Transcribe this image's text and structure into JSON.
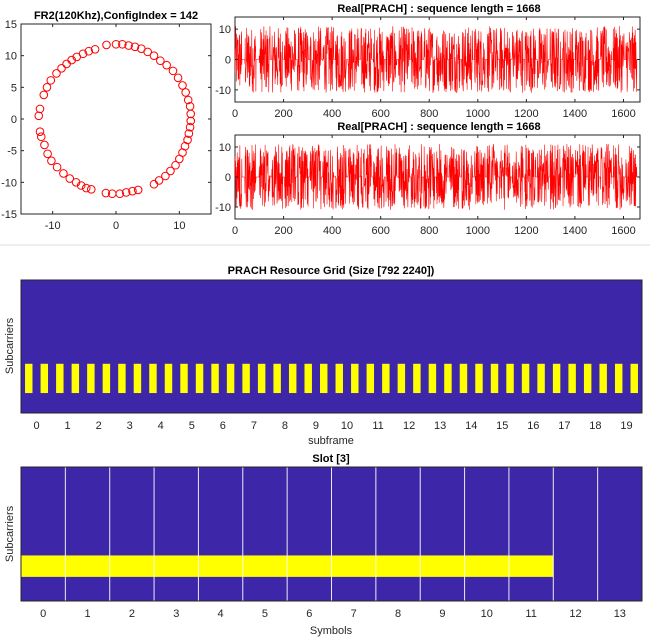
{
  "chart_data": [
    {
      "type": "scatter",
      "title": "FR2(120Khz),ConfigIndex = 142",
      "xlim": [
        -15,
        15
      ],
      "ylim": [
        -15,
        15
      ],
      "xticks": [
        "-10",
        "0",
        "10"
      ],
      "yticks": [
        "15",
        "10",
        "5",
        "0",
        "-5",
        "-10",
        "-15"
      ],
      "marker": "circle",
      "color": "#ff0000",
      "points": [
        [
          -1.5,
          11.7
        ],
        [
          0.0,
          11.8
        ],
        [
          1.0,
          11.8
        ],
        [
          2.0,
          11.6
        ],
        [
          3.0,
          11.4
        ],
        [
          4.0,
          11.1
        ],
        [
          5.0,
          10.6
        ],
        [
          6.0,
          10.0
        ],
        [
          7.0,
          9.2
        ],
        [
          8.0,
          8.5
        ],
        [
          9.0,
          7.6
        ],
        [
          9.8,
          6.5
        ],
        [
          10.5,
          5.3
        ],
        [
          11.0,
          4.2
        ],
        [
          11.4,
          3.0
        ],
        [
          11.7,
          2.0
        ],
        [
          11.8,
          0.8
        ],
        [
          11.8,
          -0.3
        ],
        [
          11.7,
          -1.3
        ],
        [
          11.5,
          -2.3
        ],
        [
          11.3,
          -3.3
        ],
        [
          10.9,
          -4.3
        ],
        [
          10.5,
          -5.3
        ],
        [
          10.0,
          -6.3
        ],
        [
          9.4,
          -7.3
        ],
        [
          8.6,
          -8.2
        ],
        [
          7.8,
          -9.0
        ],
        [
          6.8,
          -9.7
        ],
        [
          6.0,
          -10.3
        ],
        [
          3.5,
          -11.2
        ],
        [
          2.6,
          -11.4
        ],
        [
          1.6,
          -11.6
        ],
        [
          0.6,
          -11.8
        ],
        [
          -0.6,
          -11.8
        ],
        [
          -1.6,
          -11.7
        ],
        [
          -3.9,
          -11.1
        ],
        [
          -4.7,
          -10.9
        ],
        [
          -5.5,
          -10.5
        ],
        [
          -6.3,
          -10.0
        ],
        [
          -7.3,
          -9.4
        ],
        [
          -8.3,
          -8.6
        ],
        [
          -9.3,
          -7.6
        ],
        [
          -10.2,
          -6.6
        ],
        [
          -10.8,
          -5.5
        ],
        [
          -11.3,
          -4.1
        ],
        [
          -11.8,
          -2.8
        ],
        [
          -12.0,
          -2.0
        ],
        [
          -12.2,
          0.5
        ],
        [
          -12.0,
          1.6
        ],
        [
          -11.4,
          3.8
        ],
        [
          -10.9,
          5.0
        ],
        [
          -10.3,
          6.1
        ],
        [
          -9.4,
          7.2
        ],
        [
          -8.6,
          8.0
        ],
        [
          -7.8,
          8.7
        ],
        [
          -7.0,
          9.3
        ],
        [
          -6.2,
          9.8
        ],
        [
          -5.2,
          10.3
        ],
        [
          -4.3,
          10.7
        ],
        [
          -3.3,
          11.0
        ]
      ]
    },
    {
      "type": "line",
      "title": "Real[PRACH] : sequence length = 1668",
      "xlim": [
        0,
        1668
      ],
      "ylim": [
        -14,
        14
      ],
      "xticks": [
        0,
        200,
        400,
        600,
        800,
        1000,
        1200,
        1400,
        1600
      ],
      "yticks": [
        10,
        0,
        -10
      ],
      "color": "#ff0000",
      "amplitude": 11,
      "bursts": [
        [
          0,
          28
        ],
        [
          41,
          86
        ],
        [
          100,
          144
        ],
        [
          152,
          196
        ],
        [
          204,
          249
        ],
        [
          257,
          301
        ],
        [
          309,
          354
        ],
        [
          362,
          406
        ],
        [
          414,
          458
        ],
        [
          466,
          510
        ],
        [
          518,
          562
        ],
        [
          570,
          614
        ],
        [
          622,
          666
        ],
        [
          674,
          718
        ],
        [
          726,
          770
        ],
        [
          778,
          822
        ],
        [
          830,
          874
        ],
        [
          882,
          926
        ],
        [
          934,
          978
        ],
        [
          986,
          1030
        ],
        [
          1038,
          1082
        ],
        [
          1090,
          1134
        ],
        [
          1142,
          1186
        ],
        [
          1194,
          1238
        ],
        [
          1246,
          1290
        ],
        [
          1298,
          1342
        ],
        [
          1350,
          1394
        ],
        [
          1402,
          1446
        ],
        [
          1454,
          1498
        ],
        [
          1506,
          1550
        ],
        [
          1558,
          1602
        ],
        [
          1610,
          1654
        ]
      ]
    },
    {
      "type": "line",
      "title": "Real[PRACH] : sequence length = 1668",
      "xlim": [
        0,
        1668
      ],
      "ylim": [
        -14,
        14
      ],
      "xticks": [
        0,
        200,
        400,
        600,
        800,
        1000,
        1200,
        1400,
        1600
      ],
      "yticks": [
        10,
        0,
        -10
      ],
      "color": "#ff0000",
      "amplitude": 11,
      "bursts": [
        [
          0,
          28
        ],
        [
          41,
          86
        ],
        [
          100,
          144
        ],
        [
          152,
          196
        ],
        [
          204,
          249
        ],
        [
          257,
          301
        ],
        [
          309,
          354
        ],
        [
          362,
          406
        ],
        [
          414,
          458
        ],
        [
          466,
          510
        ],
        [
          518,
          562
        ],
        [
          570,
          614
        ],
        [
          622,
          666
        ],
        [
          674,
          718
        ],
        [
          726,
          770
        ],
        [
          778,
          822
        ],
        [
          830,
          874
        ],
        [
          882,
          926
        ],
        [
          934,
          978
        ],
        [
          986,
          1030
        ],
        [
          1038,
          1082
        ],
        [
          1090,
          1134
        ],
        [
          1142,
          1186
        ],
        [
          1194,
          1238
        ],
        [
          1246,
          1290
        ],
        [
          1298,
          1342
        ],
        [
          1350,
          1394
        ],
        [
          1402,
          1446
        ],
        [
          1454,
          1498
        ],
        [
          1506,
          1550
        ],
        [
          1558,
          1602
        ],
        [
          1610,
          1654
        ]
      ]
    },
    {
      "type": "heatmap",
      "title": "PRACH Resource Grid (Size [792 2240])",
      "xlabel": "subframe",
      "ylabel": "Subcarriers",
      "xticks": [
        "0",
        "1",
        "2",
        "3",
        "4",
        "5",
        "6",
        "7",
        "8",
        "9",
        "10",
        "11",
        "12",
        "13",
        "14",
        "15",
        "16",
        "17",
        "18",
        "19"
      ],
      "background_color": "#3d27a8",
      "highlight_color": "#ffff00",
      "xlim": [
        -0.5,
        19.5
      ],
      "highlight_band_y": [
        0.63,
        0.85
      ],
      "highlight_bars": 40,
      "highlight_bar_width": 0.24
    },
    {
      "type": "heatmap",
      "title": "Slot [3]",
      "xlabel": "Symbols",
      "ylabel": "Subcarriers",
      "xticks": [
        "0",
        "1",
        "2",
        "3",
        "4",
        "5",
        "6",
        "7",
        "8",
        "9",
        "10",
        "11",
        "12",
        "13"
      ],
      "background_color": "#3d27a8",
      "highlight_color": "#ffff00",
      "grid_color": "#ffffff",
      "xlim": [
        -0.5,
        13.5
      ],
      "highlight_band_y": [
        0.66,
        0.82
      ],
      "highlight_symbols": [
        0,
        11
      ]
    }
  ]
}
